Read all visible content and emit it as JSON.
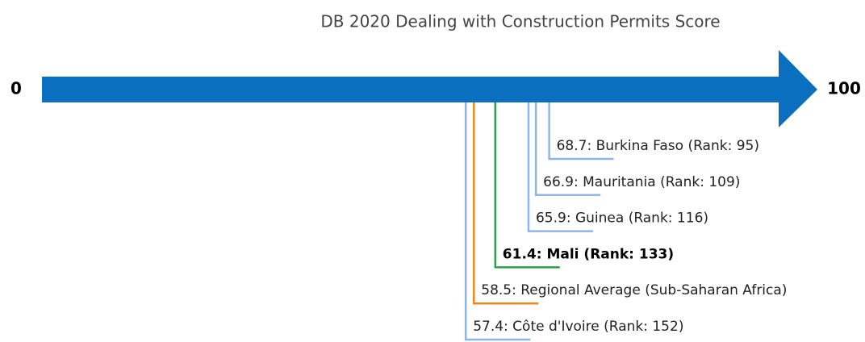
{
  "chart_data": {
    "type": "ranking",
    "title": "DB 2020 Dealing with Construction Permits Score",
    "xlim": [
      0,
      100
    ],
    "xticks": [
      0,
      100
    ],
    "axis_color": "#0a6fbf",
    "values": [
      68.7,
      66.9,
      65.9,
      61.4,
      58.5,
      57.4
    ],
    "value_labels": [
      "68.7: Burkina Faso (Rank: 95)",
      "66.9: Mauritania (Rank: 109)",
      "65.9: Guinea (Rank: 116)",
      "61.4: Mali (Rank: 133)",
      "58.5: Regional Average (Sub-Saharan Africa)",
      "57.4: Côte d'Ivoire (Rank: 152)"
    ],
    "colors": [
      "#8fb5e6",
      "#8fb5e6",
      "#8fb5e6",
      "#2ca04c",
      "#f0861f",
      "#8fb5e6"
    ],
    "bold": [
      false,
      false,
      false,
      true,
      false,
      false
    ]
  }
}
